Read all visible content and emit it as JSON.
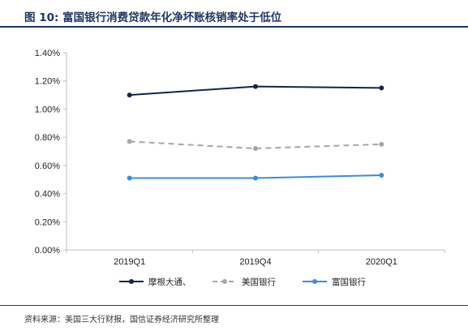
{
  "page": {
    "title": "图 10:  富国银行消费贷款年化净坏账核销率处于低位",
    "source": "资料来源：美国三大行财报，国信证券经济研究所整理"
  },
  "chart_data": {
    "type": "line",
    "title": "",
    "xlabel": "",
    "ylabel": "",
    "categories": [
      "2019Q1",
      "2019Q4",
      "2020Q1"
    ],
    "ylim": [
      0,
      1.4
    ],
    "yticks": [
      0,
      0.2,
      0.4,
      0.6,
      0.8,
      1.0,
      1.2,
      1.4
    ],
    "ytick_labels": [
      "0.00%",
      "0.20%",
      "0.40%",
      "0.60%",
      "0.80%",
      "1.00%",
      "1.20%",
      "1.40%"
    ],
    "grid": false,
    "legend_position": "bottom",
    "series": [
      {
        "name": "摩根大通、",
        "values": [
          1.1,
          1.16,
          1.15
        ],
        "color": "#12264a",
        "dashed": false
      },
      {
        "name": "美国银行",
        "values": [
          0.77,
          0.72,
          0.75
        ],
        "color": "#a6a6a6",
        "dashed": true
      },
      {
        "name": "富国银行",
        "values": [
          0.51,
          0.51,
          0.53
        ],
        "color": "#3c8dd8",
        "dashed": false
      }
    ]
  }
}
